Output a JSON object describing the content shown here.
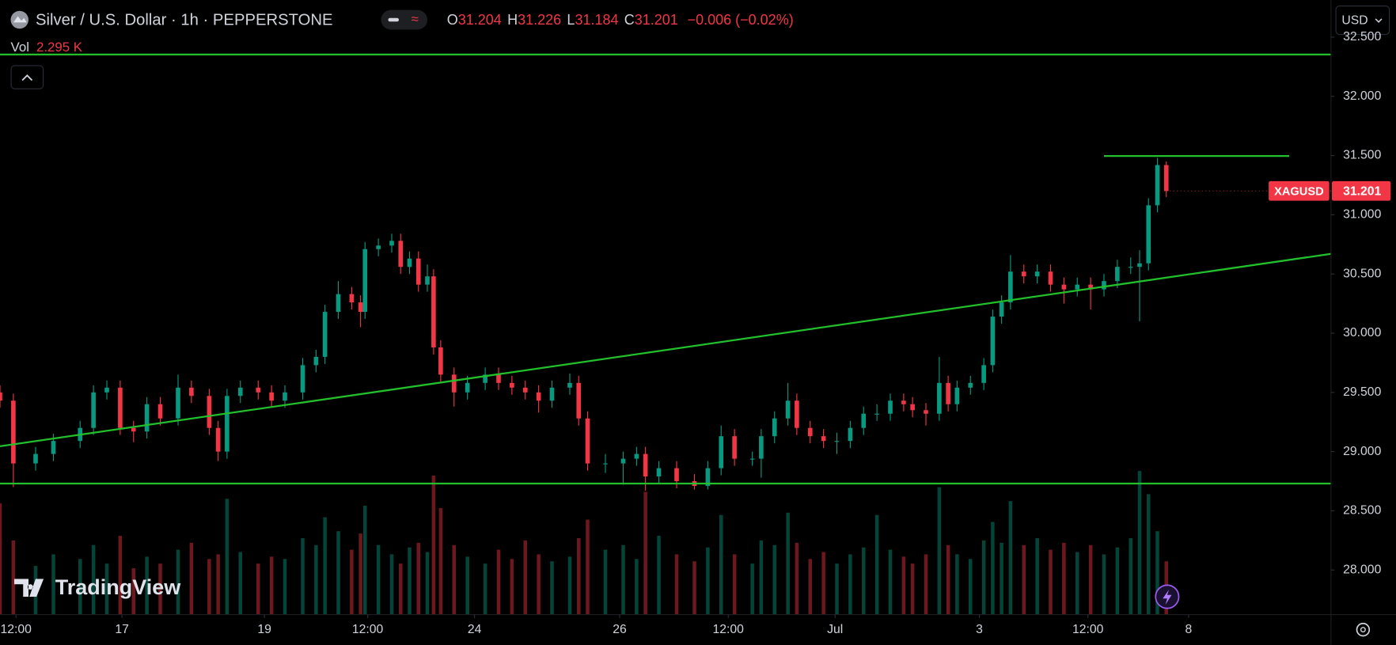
{
  "header": {
    "symbol": "Silver / U.S. Dollar · 1h · PEPPERSTONE",
    "open_label": "O",
    "open": 31.204,
    "high_label": "H",
    "high": 31.226,
    "low_label": "L",
    "low": 31.184,
    "close_label": "C",
    "change": "−0.006 (−0.02%)",
    "vol_label": "Vol",
    "vol": "2.295 K",
    "currency": "USD",
    "ticker": "XAGUSD",
    "watermark": "TradingView"
  },
  "chart_data": {
    "type": "candlestick",
    "last_price": 31.201,
    "up_color": "#089981",
    "down_color": "#f23645",
    "line_color": "#22c02a",
    "ylim": [
      27.624,
      32.812
    ],
    "yticks": [
      {
        "value": 28,
        "label": "28.000"
      },
      {
        "value": 28.5,
        "label": "28.500"
      },
      {
        "value": 29,
        "label": "29.000"
      },
      {
        "value": 29.5,
        "label": "29.500"
      },
      {
        "value": 30,
        "label": "30.000"
      },
      {
        "value": 30.5,
        "label": "30.500"
      },
      {
        "value": 31,
        "label": "31.000"
      },
      {
        "value": 31.5,
        "label": "31.500"
      },
      {
        "value": 32,
        "label": "32.000"
      },
      {
        "value": 32.5,
        "label": "32.500"
      }
    ],
    "xlim": [
      0,
      299
    ],
    "xticks": [
      {
        "value": 3.6,
        "label": "12:00"
      },
      {
        "value": 27.4,
        "label": "17"
      },
      {
        "value": 59.4,
        "label": "19"
      },
      {
        "value": 82.6,
        "label": "12:00"
      },
      {
        "value": 106.6,
        "label": "24"
      },
      {
        "value": 139.2,
        "label": "26"
      },
      {
        "value": 163.6,
        "label": "12:00"
      },
      {
        "value": 187.6,
        "label": "Jul"
      },
      {
        "value": 220,
        "label": "3"
      },
      {
        "value": 244.4,
        "label": "12:00"
      },
      {
        "value": 267,
        "label": "8"
      }
    ],
    "x": [
      0,
      3,
      8,
      12,
      18,
      21,
      24,
      27,
      30,
      33,
      36,
      40,
      43,
      47,
      49,
      51,
      54,
      58,
      61,
      64,
      68,
      71,
      73,
      76,
      79,
      81,
      82,
      85,
      88,
      90,
      92,
      94,
      96,
      97.4,
      99,
      102,
      105,
      109,
      112,
      115,
      118,
      121,
      124,
      128,
      130,
      132,
      136,
      140,
      143,
      145,
      148,
      152,
      156,
      159,
      162,
      165,
      169,
      171,
      174,
      177,
      179,
      182,
      185,
      188,
      191,
      194,
      197,
      200,
      203,
      205,
      208,
      211,
      213,
      215,
      218,
      221,
      223,
      225,
      227,
      230,
      233,
      236,
      239,
      242,
      245,
      248,
      251,
      254,
      256,
      258,
      260,
      262
    ],
    "open": [
      29.5,
      29.43,
      28.9,
      28.98,
      29.09,
      29.2,
      29.5,
      29.54,
      29.2,
      29.17,
      29.4,
      29.28,
      29.54,
      29.47,
      29.2,
      29.0,
      29.47,
      29.54,
      29.5,
      29.43,
      29.5,
      29.73,
      29.8,
      30.18,
      30.33,
      30.26,
      30.18,
      30.71,
      30.74,
      30.78,
      30.56,
      30.63,
      30.41,
      30.48,
      29.88,
      29.65,
      29.5,
      29.58,
      29.65,
      29.58,
      29.54,
      29.5,
      29.43,
      29.54,
      29.58,
      29.28,
      28.9,
      28.9,
      28.94,
      28.98,
      28.79,
      28.86,
      28.75,
      28.71,
      28.86,
      29.13,
      28.94,
      28.94,
      29.13,
      29.28,
      29.43,
      29.2,
      29.13,
      29.09,
      29.09,
      29.2,
      29.32,
      29.32,
      29.43,
      29.4,
      29.35,
      29.32,
      29.58,
      29.4,
      29.54,
      29.58,
      29.73,
      30.14,
      30.26,
      30.52,
      30.48,
      30.52,
      30.41,
      30.37,
      30.41,
      30.37,
      30.44,
      30.56,
      30.56,
      30.59,
      31.08,
      31.42
    ],
    "high": [
      29.56,
      29.49,
      29.04,
      29.15,
      29.26,
      29.56,
      29.6,
      29.6,
      29.26,
      29.46,
      29.46,
      29.65,
      29.6,
      29.53,
      29.26,
      29.53,
      29.6,
      29.6,
      29.56,
      29.56,
      29.79,
      29.86,
      30.24,
      30.44,
      30.39,
      30.32,
      30.77,
      30.8,
      30.84,
      30.84,
      30.69,
      30.69,
      30.58,
      30.54,
      29.94,
      29.71,
      29.64,
      29.71,
      29.71,
      29.64,
      29.6,
      29.56,
      29.6,
      29.66,
      29.64,
      29.34,
      28.98,
      29.0,
      29.04,
      29.04,
      28.92,
      28.92,
      28.81,
      28.92,
      29.22,
      29.19,
      29.0,
      29.19,
      29.34,
      29.58,
      29.49,
      29.26,
      29.19,
      29.16,
      29.26,
      29.38,
      29.4,
      29.49,
      29.49,
      29.46,
      29.41,
      29.8,
      29.64,
      29.6,
      29.64,
      29.79,
      30.2,
      30.32,
      30.66,
      30.58,
      30.58,
      30.58,
      30.47,
      30.47,
      30.47,
      30.5,
      30.62,
      30.64,
      30.7,
      31.14,
      31.48,
      31.45
    ],
    "low": [
      29.37,
      28.7,
      28.84,
      28.92,
      29.03,
      29.14,
      29.44,
      29.14,
      29.08,
      29.11,
      29.22,
      29.22,
      29.41,
      29.14,
      28.92,
      28.94,
      29.41,
      29.44,
      29.37,
      29.37,
      29.44,
      29.67,
      29.74,
      30.12,
      30.2,
      30.05,
      30.12,
      30.65,
      30.68,
      30.5,
      30.5,
      30.35,
      30.35,
      29.82,
      29.59,
      29.38,
      29.44,
      29.52,
      29.52,
      29.48,
      29.44,
      29.33,
      29.37,
      29.48,
      29.22,
      28.84,
      28.82,
      28.72,
      28.88,
      28.67,
      28.73,
      28.69,
      28.68,
      28.68,
      28.8,
      28.88,
      28.88,
      28.78,
      29.07,
      29.22,
      29.14,
      29.07,
      29.03,
      28.98,
      29.03,
      29.14,
      29.26,
      29.26,
      29.34,
      29.29,
      29.22,
      29.26,
      29.34,
      29.34,
      29.48,
      29.52,
      29.67,
      30.08,
      30.2,
      30.42,
      30.42,
      30.35,
      30.25,
      30.31,
      30.2,
      30.31,
      30.38,
      30.5,
      30.1,
      30.53,
      31.02,
      31.15
    ],
    "close": [
      29.43,
      28.9,
      28.98,
      29.09,
      29.2,
      29.5,
      29.54,
      29.2,
      29.17,
      29.4,
      29.28,
      29.54,
      29.47,
      29.2,
      29.0,
      29.47,
      29.54,
      29.5,
      29.43,
      29.5,
      29.73,
      29.8,
      30.18,
      30.33,
      30.26,
      30.18,
      30.71,
      30.74,
      30.78,
      30.56,
      30.63,
      30.41,
      30.48,
      29.88,
      29.65,
      29.5,
      29.58,
      29.65,
      29.58,
      29.54,
      29.5,
      29.43,
      29.54,
      29.58,
      29.28,
      28.9,
      28.9,
      28.94,
      28.98,
      28.79,
      28.86,
      28.75,
      28.71,
      28.86,
      29.13,
      28.94,
      28.94,
      29.13,
      29.28,
      29.43,
      29.2,
      29.13,
      29.09,
      29.09,
      29.2,
      29.32,
      29.32,
      29.43,
      29.4,
      29.35,
      29.32,
      29.58,
      29.4,
      29.54,
      29.58,
      29.73,
      30.14,
      30.26,
      30.52,
      30.48,
      30.52,
      30.41,
      30.37,
      30.41,
      30.37,
      30.44,
      30.56,
      30.56,
      30.59,
      31.08,
      31.42,
      31.2
    ],
    "volume": [
      4.8,
      3.2,
      2.1,
      2.6,
      2.4,
      3.0,
      2.2,
      3.4,
      2.0,
      2.5,
      2.2,
      2.8,
      3.1,
      2.4,
      2.6,
      5.0,
      2.7,
      2.2,
      2.5,
      2.4,
      3.3,
      3.0,
      4.2,
      3.6,
      2.8,
      3.5,
      4.7,
      3.0,
      2.6,
      2.2,
      2.9,
      3.1,
      2.7,
      6.0,
      4.6,
      3.0,
      2.5,
      2.2,
      2.8,
      2.4,
      3.2,
      2.6,
      2.3,
      2.5,
      3.3,
      4.1,
      2.8,
      3.0,
      2.4,
      5.3,
      3.4,
      2.6,
      2.3,
      2.9,
      4.3,
      2.6,
      2.2,
      3.2,
      3.0,
      4.4,
      3.1,
      2.4,
      2.7,
      2.2,
      2.6,
      2.9,
      4.3,
      2.8,
      2.5,
      2.2,
      2.6,
      5.5,
      3.0,
      2.6,
      2.4,
      3.2,
      4.0,
      3.1,
      4.9,
      3.0,
      3.3,
      2.8,
      3.1,
      2.7,
      3.0,
      2.6,
      2.9,
      3.3,
      6.2,
      5.2,
      3.6,
      2.3
    ],
    "lines": [
      {
        "x": [
          0,
          299
        ],
        "y": [
          29.045,
          30.67
        ]
      },
      {
        "x": [
          0,
          299
        ],
        "y": [
          32.353,
          32.353
        ]
      },
      {
        "x": [
          0,
          299
        ],
        "y": [
          28.73,
          28.73
        ]
      },
      {
        "x": [
          248,
          289.6
        ],
        "y": [
          31.496,
          31.496
        ]
      }
    ]
  }
}
